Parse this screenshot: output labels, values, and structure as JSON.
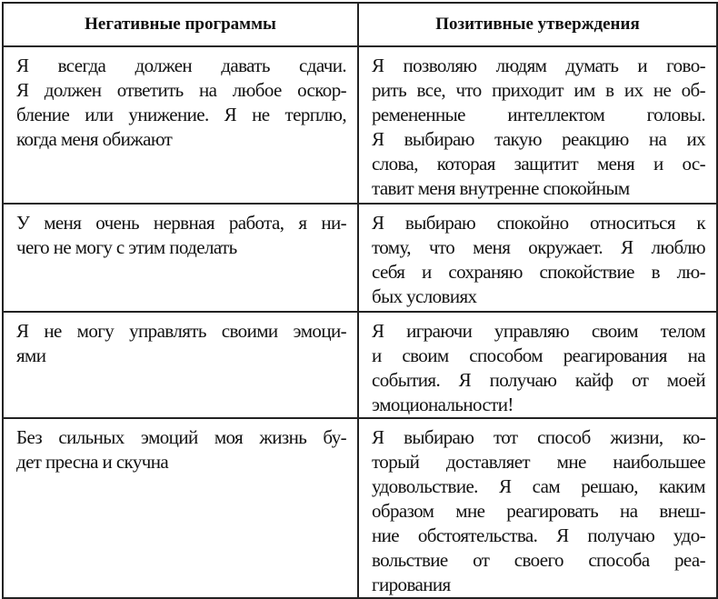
{
  "headers": [
    "Негативные программы",
    "Позитивные утверждения"
  ],
  "rows": [
    {
      "negative": [
        "Я всегда должен давать сдачи.",
        "Я должен ответить на любое оскор-",
        "бление или унижение. Я не терплю,",
        "когда меня обижают"
      ],
      "positive": [
        "Я позволяю людям думать и гово-",
        "рить все, что приходит им в их не об-",
        "ремененные интеллектом головы.",
        "Я выбираю такую реакцию на их",
        "слова, которая защитит меня и ос-",
        "тавит меня внутренне спокойным"
      ]
    },
    {
      "negative": [
        "У меня очень нервная работа, я ни-",
        "чего не могу с этим поделать"
      ],
      "positive": [
        "Я выбираю спокойно относиться к",
        "тому, что меня окружает. Я люблю",
        "себя и сохраняю спокойствие в лю-",
        "бых условиях"
      ]
    },
    {
      "negative": [
        "Я не могу управлять своими эмоци-",
        "ями"
      ],
      "positive": [
        "Я играючи управляю своим телом",
        "и своим способом реагирования на",
        "события. Я получаю кайф от моей",
        "эмоциональности!"
      ]
    },
    {
      "negative": [
        "Без сильных эмоций моя жизнь бу-",
        "дет пресна и скучна"
      ],
      "positive": [
        "Я выбираю тот способ жизни, ко-",
        "торый доставляет мне наибольшее",
        "удовольствие. Я сам решаю, каким",
        "образом мне реагировать на внеш-",
        "ние обстоятельства. Я получаю удо-",
        "вольствие от своего способа реа-",
        "гирования"
      ]
    }
  ]
}
